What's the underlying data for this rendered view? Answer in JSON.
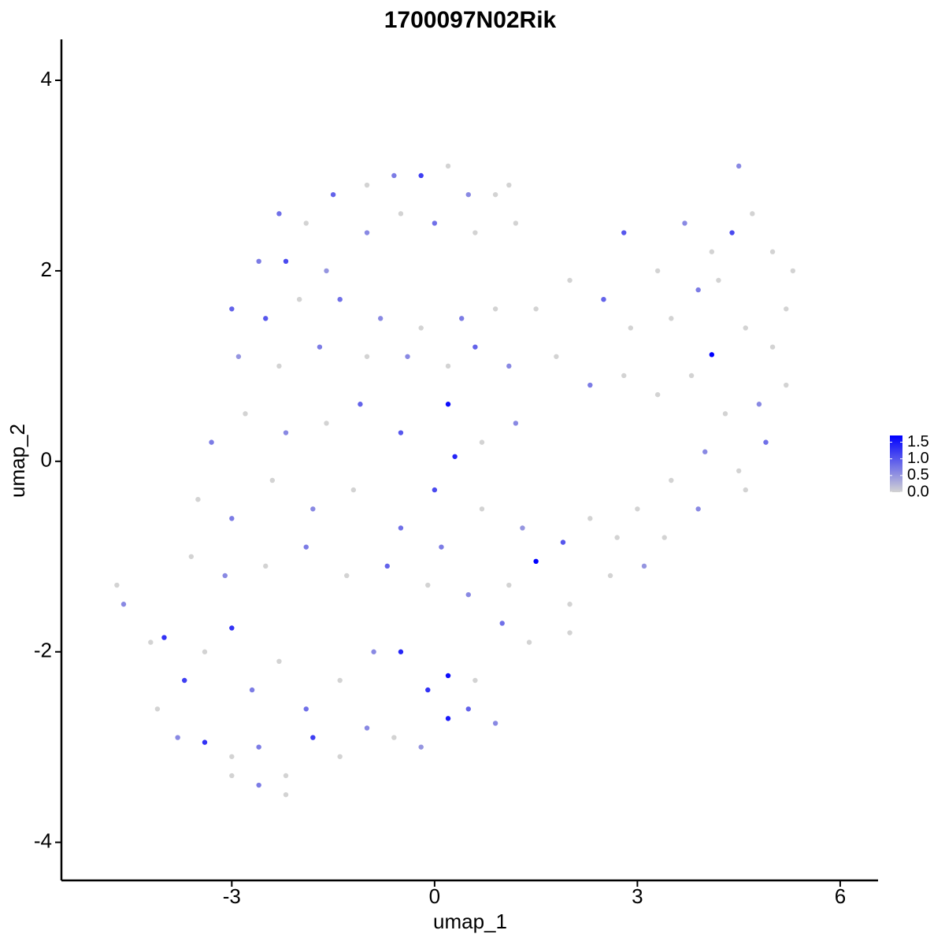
{
  "chart_data": {
    "type": "scatter",
    "title": "1700097N02Rik",
    "x_label": "umap_1",
    "y_label": "umap_2",
    "xlim": [
      -5.52,
      6.56
    ],
    "ylim": [
      -4.4,
      4.43
    ],
    "xticks": [
      -3,
      0,
      3,
      6
    ],
    "yticks": [
      -4,
      -2,
      0,
      2,
      4
    ],
    "color_low": "#d3d3d3",
    "color_high": "#0000ff",
    "clim": [
      0,
      1.7
    ],
    "legend_ticks": [
      {
        "value": 0,
        "label": "0.0"
      },
      0.5,
      {
        "value": 1,
        "label": "1.0"
      },
      1.5
    ],
    "x": [
      -2.3,
      -1.9,
      -1.5,
      -1.0,
      -0.6,
      -0.2,
      0.2,
      0.5,
      0.9,
      1.1,
      -2.6,
      -2.2,
      -1.6,
      -1.0,
      -0.5,
      0.0,
      0.6,
      1.2,
      -3.0,
      -2.5,
      -2.0,
      -1.4,
      -0.8,
      -0.2,
      0.4,
      0.9,
      -2.9,
      -2.3,
      -1.7,
      -1.0,
      -0.4,
      0.2,
      0.6,
      1.1,
      -3.3,
      -2.8,
      -2.2,
      -1.6,
      -1.1,
      -0.5,
      0.2,
      0.3,
      0.0,
      0.7,
      1.2,
      -3.5,
      -3.0,
      -2.4,
      -1.8,
      -1.2,
      -0.5,
      0.1,
      0.7,
      1.3,
      1.5,
      1.9,
      2.3,
      -3.6,
      -3.1,
      -2.5,
      -1.9,
      -1.3,
      -0.7,
      -0.1,
      0.5,
      1.1,
      2.0,
      2.6,
      3.1,
      -4.7,
      -4.6,
      -4.2,
      -4.0,
      -3.7,
      -3.4,
      -3.0,
      -2.7,
      -2.3,
      -1.9,
      -1.4,
      -0.9,
      -0.5,
      -0.1,
      0.2,
      0.6,
      1.0,
      1.4,
      2.0,
      -4.1,
      -3.8,
      -3.4,
      -3.0,
      -2.6,
      -2.2,
      -1.8,
      -1.4,
      -1.0,
      -0.6,
      -0.2,
      0.2,
      0.5,
      0.9,
      -2.6,
      -2.2,
      -3.0,
      2.0,
      2.5,
      2.9,
      3.3,
      3.7,
      4.1,
      4.5,
      4.7,
      5.0,
      5.3,
      4.4,
      3.9,
      3.5,
      4.1,
      4.6,
      5.0,
      5.2,
      4.8,
      4.3,
      3.8,
      3.3,
      2.8,
      2.3,
      1.8,
      1.5,
      4.9,
      4.5,
      4.0,
      3.5,
      3.0,
      2.7,
      4.6,
      3.9,
      3.4,
      2.8,
      5.2,
      4.2
    ],
    "y": [
      2.6,
      2.5,
      2.8,
      2.9,
      3.0,
      3.0,
      3.1,
      2.8,
      2.8,
      2.9,
      2.1,
      2.1,
      2.0,
      2.4,
      2.6,
      2.5,
      2.4,
      2.5,
      1.6,
      1.5,
      1.7,
      1.7,
      1.5,
      1.4,
      1.5,
      1.6,
      1.1,
      1.0,
      1.2,
      1.1,
      1.1,
      1.0,
      1.2,
      1.0,
      0.2,
      0.5,
      0.3,
      0.4,
      0.6,
      0.3,
      0.6,
      0.05,
      -0.3,
      0.2,
      0.4,
      -0.4,
      -0.6,
      -0.2,
      -0.5,
      -0.3,
      -0.7,
      -0.9,
      -0.5,
      -0.7,
      -1.05,
      -0.85,
      -0.6,
      -1.0,
      -1.2,
      -1.1,
      -0.9,
      -1.2,
      -1.1,
      -1.3,
      -1.4,
      -1.3,
      -1.5,
      -1.2,
      -1.1,
      -1.3,
      -1.5,
      -1.9,
      -1.85,
      -2.3,
      -2.0,
      -1.75,
      -2.4,
      -2.1,
      -2.6,
      -2.3,
      -2.0,
      -2.0,
      -2.4,
      -2.25,
      -2.3,
      -1.7,
      -1.9,
      -1.8,
      -2.6,
      -2.9,
      -2.95,
      -3.1,
      -3.0,
      -3.3,
      -2.9,
      -3.1,
      -2.8,
      -2.9,
      -3.0,
      -2.7,
      -2.6,
      -2.75,
      -3.4,
      -3.5,
      -3.3,
      1.9,
      1.7,
      1.4,
      2.0,
      2.5,
      2.2,
      3.1,
      2.6,
      2.2,
      2.0,
      2.4,
      1.8,
      1.5,
      1.12,
      1.4,
      1.2,
      0.8,
      0.6,
      0.5,
      0.9,
      0.7,
      0.9,
      0.8,
      1.1,
      1.6,
      0.2,
      -0.1,
      0.1,
      -0.2,
      -0.5,
      -0.8,
      -0.3,
      -0.5,
      -0.8,
      2.4,
      1.6,
      1.9
    ],
    "values": [
      0.8,
      0,
      0.9,
      0,
      0.7,
      1.2,
      0,
      0.6,
      0,
      0,
      0.7,
      1.1,
      0.5,
      0.6,
      0,
      0.8,
      0,
      0,
      0.9,
      1.0,
      0,
      0.8,
      0.6,
      0,
      0.7,
      0,
      0.5,
      0,
      0.7,
      0,
      0.6,
      0,
      0.9,
      0.6,
      0.7,
      0,
      0.6,
      0,
      0.9,
      1.0,
      1.6,
      1.4,
      1.1,
      0,
      0.6,
      0,
      0.7,
      0,
      0.6,
      0,
      0.8,
      0.7,
      0,
      0.5,
      1.7,
      1.0,
      0,
      0,
      0.6,
      0,
      0.7,
      0,
      0.9,
      0,
      0.6,
      0,
      0,
      0,
      0.5,
      0,
      0.6,
      0,
      1.3,
      1.2,
      0,
      1.3,
      0.7,
      0,
      0.8,
      0,
      0.6,
      1.4,
      1.3,
      1.6,
      0,
      0.8,
      0,
      0,
      0,
      0.6,
      1.3,
      0,
      0.7,
      0,
      1.2,
      0,
      0.6,
      0,
      0.5,
      1.5,
      0.9,
      0.6,
      0.7,
      0,
      0,
      0,
      0.9,
      0,
      0,
      0.6,
      0,
      0.6,
      0,
      0,
      0,
      1.1,
      0.7,
      0,
      1.7,
      0,
      0,
      0,
      0.6,
      0,
      0,
      0,
      0,
      0.7,
      0,
      0,
      0.8,
      0,
      0.6,
      0,
      0,
      0,
      0,
      0.6,
      0,
      1.0,
      0,
      0
    ]
  }
}
